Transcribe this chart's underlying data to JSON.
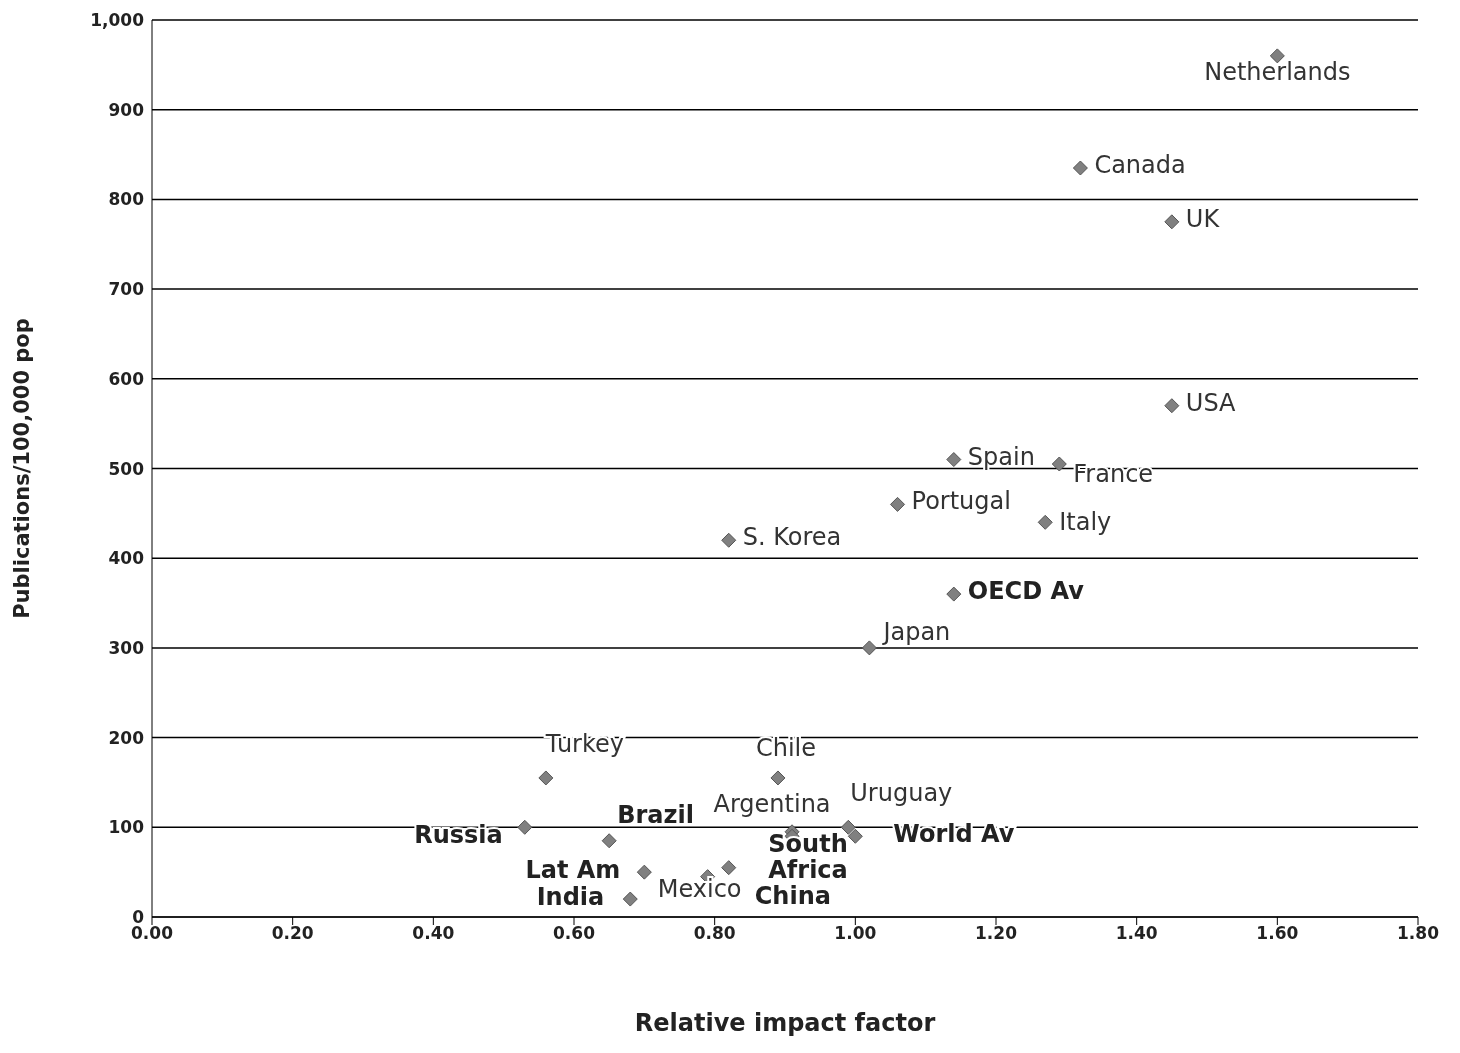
{
  "chart_data": {
    "type": "scatter",
    "xlabel": "Relative impact factor",
    "ylabel": "Publications/100,000 pop",
    "xlim": [
      0,
      1.8
    ],
    "xticks": [
      {
        "value": 0,
        "label": "0.00"
      },
      {
        "value": 0.2,
        "label": "0.20"
      },
      {
        "value": 0.4,
        "label": "0.40"
      },
      {
        "value": 0.6,
        "label": "0.60"
      },
      {
        "value": 0.8,
        "label": "0.80"
      },
      {
        "value": 1,
        "label": "1.00"
      },
      {
        "value": 1.2,
        "label": "1.20"
      },
      {
        "value": 1.4,
        "label": "1.40"
      },
      {
        "value": 1.6,
        "label": "1.60"
      },
      {
        "value": 1.8,
        "label": "1.80"
      }
    ],
    "ylim": [
      0,
      1000
    ],
    "yticks": [
      0,
      100,
      200,
      300,
      400,
      500,
      600,
      700,
      800,
      900,
      {
        "value": 1000,
        "label": "1,000"
      }
    ],
    "grid": "y",
    "legend": false,
    "marker": "diamond",
    "series": [
      {
        "color": "#808080",
        "x": [
          1.6,
          1.32,
          1.45,
          1.45,
          1.14,
          1.29,
          1.06,
          1.27,
          0.82,
          1.02,
          0.56,
          0.89,
          0.91,
          0.99,
          0.79
        ],
        "values": [
          960,
          835,
          775,
          570,
          510,
          505,
          460,
          440,
          420,
          300,
          155,
          155,
          95,
          100,
          45
        ],
        "value_labels": [
          "Netherlands",
          "Canada",
          "UK",
          "USA",
          "Spain",
          "France",
          "Portugal",
          "Italy",
          "S. Korea",
          "Japan",
          "Turkey",
          "Chile",
          "Argentina",
          "Uruguay",
          "Mexico"
        ]
      },
      {
        "color": "#808080",
        "x": [
          1.14,
          1.0,
          0.53,
          0.65,
          0.7,
          0.68,
          0.82,
          0.91
        ],
        "values": [
          360,
          90,
          100,
          85,
          50,
          20,
          55,
          90
        ],
        "value_labels": [
          "OECD Av",
          "World Av",
          "Russia",
          "Brazil",
          "Lat Am",
          "India",
          "China",
          "South Africa"
        ]
      }
    ]
  }
}
